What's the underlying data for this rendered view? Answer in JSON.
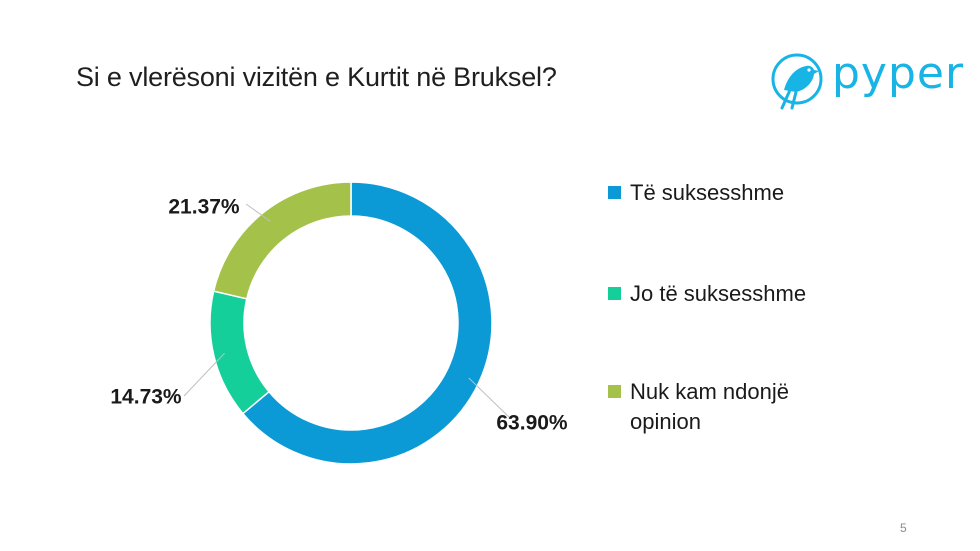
{
  "slide": {
    "title": "Si e vlerësoni vizitën e Kurtit në Bruksel?",
    "page_number": "5",
    "logo_text": "pyper"
  },
  "colors": {
    "accent": "#19b4e6"
  },
  "chart_data": {
    "type": "pie",
    "donut": true,
    "title": "Si e vlerësoni vizitën e Kurtit në Bruksel?",
    "legend_position": "right",
    "series": [
      {
        "name": "Të suksesshme",
        "value": 63.9,
        "label": "63.90%",
        "color": "#0b9ad6"
      },
      {
        "name": "Jo të suksesshme",
        "value": 14.73,
        "label": "14.73%",
        "color": "#15cf9a"
      },
      {
        "name": "Nuk kam ndonjë opinion",
        "value": 21.37,
        "label": "21.37%",
        "color": "#a4c24a"
      }
    ]
  }
}
